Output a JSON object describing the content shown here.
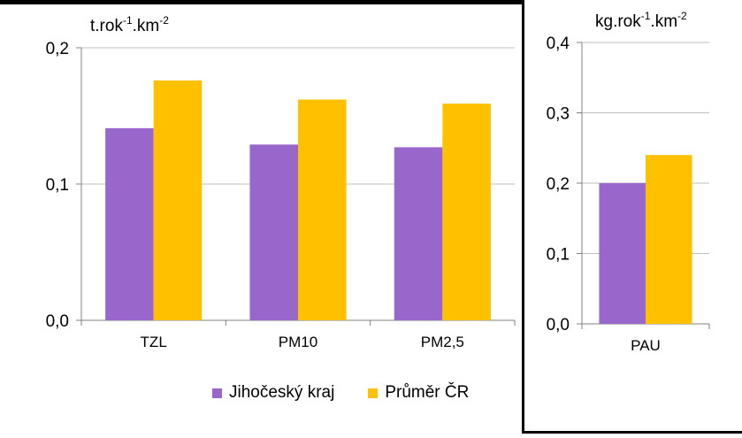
{
  "colors": {
    "jihocesky": "#9966CC",
    "prumer": "#FFC000",
    "grid": "#BFBFBF",
    "axis": "#808080"
  },
  "legend": {
    "series1": "Jihočeský kraj",
    "series2": "Průměr ČR"
  },
  "chart_data": [
    {
      "type": "bar",
      "ylabel_base": "t.rok",
      "ylabel_exp1": "-1",
      "ylabel_mid": ".km",
      "ylabel_exp2": "-2",
      "categories": [
        "TZL",
        "PM10",
        "PM2,5"
      ],
      "ylim": [
        0,
        0.2
      ],
      "yticks": [
        0,
        0.1,
        0.2
      ],
      "ytick_labels": [
        "0,0",
        "0,1",
        "0,2"
      ],
      "series": [
        {
          "name": "Jihočeský kraj",
          "values": [
            0.141,
            0.129,
            0.127
          ]
        },
        {
          "name": "Průměr ČR",
          "values": [
            0.176,
            0.162,
            0.159
          ]
        }
      ]
    },
    {
      "type": "bar",
      "ylabel_base": "kg.rok",
      "ylabel_exp1": "-1",
      "ylabel_mid": ".km",
      "ylabel_exp2": "-2",
      "categories": [
        "PAU"
      ],
      "ylim": [
        0,
        0.4
      ],
      "yticks": [
        0,
        0.1,
        0.2,
        0.3,
        0.4
      ],
      "ytick_labels": [
        "0,0",
        "0,1",
        "0,2",
        "0,3",
        "0,4"
      ],
      "series": [
        {
          "name": "Jihočeský kraj",
          "values": [
            0.2
          ]
        },
        {
          "name": "Průměr ČR",
          "values": [
            0.24
          ]
        }
      ]
    }
  ]
}
